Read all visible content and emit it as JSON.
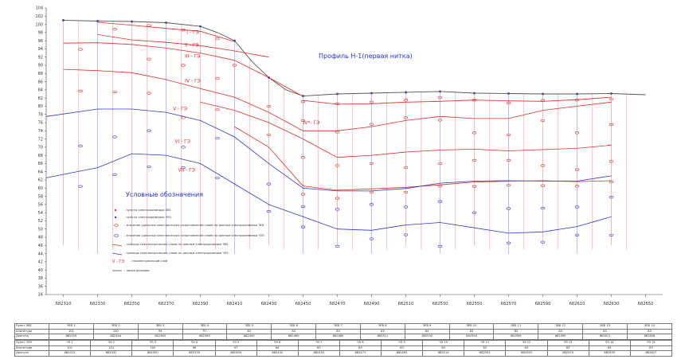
{
  "title": "Профиль Н-1(первая нитка)",
  "legend": {
    "title": "Условные обозначения",
    "items": [
      {
        "key": "ves",
        "label": "- пункты электроразведки ЗЕБ"
      },
      {
        "key": "vrs",
        "label": "- пункты электроразведки ЧЭЗ"
      },
      {
        "key": "rho_ves",
        "label": "- значения удельных электрических сопротивлений слоев по данным электроразведки ЗЕБ"
      },
      {
        "key": "rho_vrs",
        "label": "- значения удельных электрических сопротивлений слоев по данным электроразведки ЧЭЗ"
      },
      {
        "key": "bound_ves",
        "label": "- границы геоэлектрических слоев по данным электроразведки ЗЕБ"
      },
      {
        "key": "bound_vrs",
        "label": "- границы геоэлектрических слоев по данным электроразведки ЧЭЗ"
      },
      {
        "key": "ge",
        "label": "- геоэлектрический слой",
        "symbol": "V - ГЭ"
      },
      {
        "key": "relief",
        "label": "- линия рельефа"
      }
    ]
  },
  "layer_labels": [
    "I - ГЭ",
    "II - ГЭ",
    "III - ГЭ",
    "IV - ГЭ",
    "V - ГЭ",
    "VI - ГЭ",
    "VII - ГЭ",
    "IV*- ГЭ"
  ],
  "chart_data": {
    "type": "line",
    "ylim": [
      34,
      104
    ],
    "yticks": [
      104,
      102,
      100,
      98,
      96,
      94,
      92,
      90,
      88,
      86,
      84,
      82,
      80,
      78,
      76,
      74,
      72,
      70,
      68,
      66,
      64,
      62,
      60,
      58,
      56,
      54,
      52,
      50,
      48,
      46,
      44,
      42,
      40,
      38,
      36,
      34
    ],
    "xlim": [
      682300,
      682660
    ],
    "xticks": [
      682310,
      682330,
      682350,
      682370,
      682390,
      682410,
      682430,
      682450,
      682470,
      682490,
      682510,
      682530,
      682550,
      682570,
      682590,
      682610,
      682630,
      682650
    ],
    "series": [
      {
        "key": "relief",
        "style": "relief",
        "x": [
          682310,
          682330,
          682350,
          682370,
          682390,
          682400,
          682410,
          682420,
          682430,
          682440,
          682450,
          682470,
          682490,
          682510,
          682530,
          682550,
          682570,
          682590,
          682610,
          682630,
          682650
        ],
        "y": [
          101,
          100.8,
          100.7,
          100.4,
          99.5,
          98,
          96,
          91,
          87,
          84,
          82.5,
          83,
          83.2,
          83.4,
          83.6,
          83.2,
          83.1,
          83,
          83,
          83.1,
          82.8
        ]
      },
      {
        "key": "r1",
        "style": "red",
        "x": [
          682330,
          682350,
          682370,
          682390,
          682410
        ],
        "y": [
          100.5,
          99.8,
          99,
          98.3,
          95.8
        ]
      },
      {
        "key": "r2",
        "style": "red",
        "x": [
          682330,
          682350,
          682370,
          682390,
          682410,
          682430
        ],
        "y": [
          97.5,
          96.2,
          95.6,
          94.8,
          93.5,
          92
        ]
      },
      {
        "key": "r3",
        "style": "red",
        "x": [
          682310,
          682330,
          682350,
          682370,
          682390,
          682410,
          682430,
          682450
        ],
        "y": [
          95.4,
          95.5,
          95.1,
          94.2,
          93,
          91.2,
          87,
          82.4
        ]
      },
      {
        "key": "r4",
        "style": "red",
        "x": [
          682310,
          682330,
          682350,
          682370,
          682390,
          682410,
          682430,
          682450,
          682470,
          682490,
          682510,
          682530,
          682550,
          682570,
          682590,
          682610,
          682630
        ],
        "y": [
          89,
          88.7,
          88.2,
          86.5,
          84.3,
          82.2,
          78.5,
          74,
          74,
          75,
          76.5,
          77.5,
          77,
          77,
          79,
          80,
          81
        ]
      },
      {
        "key": "r5",
        "style": "red",
        "x": [
          682450,
          682470,
          682490,
          682510,
          682530,
          682550,
          682570,
          682590,
          682610,
          682630
        ],
        "y": [
          81.4,
          80.5,
          80.6,
          81,
          81.2,
          81.5,
          81.3,
          81.2,
          81.6,
          82.2
        ]
      },
      {
        "key": "r6",
        "style": "red",
        "x": [
          682390,
          682410,
          682430,
          682450,
          682470,
          682490,
          682510,
          682530,
          682550,
          682570,
          682590,
          682610,
          682630
        ],
        "y": [
          81,
          79,
          76,
          72,
          67.5,
          68,
          68.8,
          69.3,
          69.5,
          69.1,
          69.4,
          69.7,
          70.5
        ]
      },
      {
        "key": "r7",
        "style": "red",
        "x": [
          682410,
          682430,
          682450,
          682470,
          682490,
          682510,
          682530,
          682550,
          682570,
          682590,
          682610,
          682630
        ],
        "y": [
          75,
          70,
          60.5,
          59.5,
          59.8,
          60.2,
          60.8,
          61.5,
          61.7,
          61.8,
          61.6,
          61.8
        ]
      },
      {
        "key": "b1",
        "style": "blue",
        "x": [
          682300,
          682330,
          682350,
          682370,
          682390,
          682410,
          682430,
          682450,
          682470,
          682490,
          682510,
          682530,
          682550,
          682570,
          682590,
          682610,
          682630
        ],
        "y": [
          77.5,
          79.3,
          79.3,
          78.5,
          76.5,
          72.5,
          66,
          60,
          59.3,
          59.3,
          59.9,
          61.2,
          61.7,
          61.8,
          61.7,
          61.7,
          63
        ]
      },
      {
        "key": "b2",
        "style": "blue",
        "x": [
          682300,
          682330,
          682350,
          682370,
          682390,
          682410,
          682430,
          682450,
          682470,
          682490,
          682510,
          682530,
          682550,
          682570,
          682590,
          682610,
          682630
        ],
        "y": [
          62.5,
          65,
          68.4,
          68,
          66,
          61,
          56,
          53,
          50,
          49.7,
          51,
          51.6,
          50.3,
          49,
          49.3,
          50.6,
          53
        ]
      }
    ],
    "stations": [
      682310,
      682330,
      682350,
      682370,
      682390,
      682410,
      682430,
      682450,
      682470,
      682490,
      682510,
      682530,
      682550,
      682570,
      682590,
      682610,
      682630
    ],
    "points": [
      {
        "x": 682320,
        "y": 93.9,
        "kind": "red"
      },
      {
        "x": 682340,
        "y": 98.8,
        "kind": "red"
      },
      {
        "x": 682360,
        "y": 99.7,
        "kind": "red"
      },
      {
        "x": 682380,
        "y": 98.6,
        "kind": "red"
      },
      {
        "x": 682320,
        "y": 83.7,
        "kind": "red"
      },
      {
        "x": 682340,
        "y": 83.5,
        "kind": "red"
      },
      {
        "x": 682360,
        "y": 91.5,
        "kind": "red"
      },
      {
        "x": 682380,
        "y": 90,
        "kind": "red"
      },
      {
        "x": 682400,
        "y": 86.8,
        "kind": "red"
      },
      {
        "x": 682360,
        "y": 83.2,
        "kind": "red"
      },
      {
        "x": 682400,
        "y": 79.2,
        "kind": "red"
      },
      {
        "x": 682380,
        "y": 77.2,
        "kind": "red"
      },
      {
        "x": 682320,
        "y": 70.3,
        "kind": "blue"
      },
      {
        "x": 682340,
        "y": 72.5,
        "kind": "blue"
      },
      {
        "x": 682360,
        "y": 74,
        "kind": "blue"
      },
      {
        "x": 682380,
        "y": 70,
        "kind": "blue"
      },
      {
        "x": 682400,
        "y": 72.2,
        "kind": "blue"
      },
      {
        "x": 682340,
        "y": 63.3,
        "kind": "blue"
      },
      {
        "x": 682360,
        "y": 65.2,
        "kind": "blue"
      },
      {
        "x": 682380,
        "y": 65,
        "kind": "blue"
      },
      {
        "x": 682400,
        "y": 62.5,
        "kind": "blue"
      },
      {
        "x": 682320,
        "y": 60.4,
        "kind": "blue"
      },
      {
        "x": 682430,
        "y": 61,
        "kind": "blue"
      },
      {
        "x": 682430,
        "y": 54.3,
        "kind": "blue"
      },
      {
        "x": 682450,
        "y": 50.5,
        "kind": "blue"
      },
      {
        "x": 682470,
        "y": 45.8,
        "kind": "blue"
      },
      {
        "x": 682490,
        "y": 47.6,
        "kind": "blue"
      },
      {
        "x": 682510,
        "y": 48.6,
        "kind": "blue"
      },
      {
        "x": 682530,
        "y": 45.8,
        "kind": "blue"
      },
      {
        "x": 682550,
        "y": 54,
        "kind": "blue"
      },
      {
        "x": 682570,
        "y": 46.6,
        "kind": "blue"
      },
      {
        "x": 682590,
        "y": 46.8,
        "kind": "blue"
      },
      {
        "x": 682610,
        "y": 48.5,
        "kind": "blue"
      },
      {
        "x": 682630,
        "y": 48.5,
        "kind": "blue"
      },
      {
        "x": 682450,
        "y": 55.5,
        "kind": "blue"
      },
      {
        "x": 682470,
        "y": 54.8,
        "kind": "blue"
      },
      {
        "x": 682490,
        "y": 56,
        "kind": "blue"
      },
      {
        "x": 682510,
        "y": 55.4,
        "kind": "blue"
      },
      {
        "x": 682530,
        "y": 56.7,
        "kind": "blue"
      },
      {
        "x": 682570,
        "y": 55,
        "kind": "blue"
      },
      {
        "x": 682590,
        "y": 55.1,
        "kind": "blue"
      },
      {
        "x": 682610,
        "y": 55.4,
        "kind": "blue"
      },
      {
        "x": 682630,
        "y": 57.8,
        "kind": "blue"
      },
      {
        "x": 682450,
        "y": 81.1,
        "kind": "red"
      },
      {
        "x": 682470,
        "y": 80.6,
        "kind": "red"
      },
      {
        "x": 682490,
        "y": 81,
        "kind": "red"
      },
      {
        "x": 682510,
        "y": 81.5,
        "kind": "red"
      },
      {
        "x": 682530,
        "y": 82.1,
        "kind": "red"
      },
      {
        "x": 682550,
        "y": 81.5,
        "kind": "red"
      },
      {
        "x": 682570,
        "y": 80.8,
        "kind": "red"
      },
      {
        "x": 682590,
        "y": 81.4,
        "kind": "red"
      },
      {
        "x": 682610,
        "y": 81.5,
        "kind": "red"
      },
      {
        "x": 682630,
        "y": 81.7,
        "kind": "red"
      },
      {
        "x": 682450,
        "y": 76.5,
        "kind": "red"
      },
      {
        "x": 682470,
        "y": 73.7,
        "kind": "red"
      },
      {
        "x": 682490,
        "y": 75.6,
        "kind": "red"
      },
      {
        "x": 682510,
        "y": 77.2,
        "kind": "red"
      },
      {
        "x": 682530,
        "y": 76.6,
        "kind": "red"
      },
      {
        "x": 682550,
        "y": 73.5,
        "kind": "red"
      },
      {
        "x": 682570,
        "y": 73,
        "kind": "red"
      },
      {
        "x": 682590,
        "y": 76.5,
        "kind": "red"
      },
      {
        "x": 682610,
        "y": 73.5,
        "kind": "red"
      },
      {
        "x": 682630,
        "y": 75.5,
        "kind": "red"
      },
      {
        "x": 682450,
        "y": 67.5,
        "kind": "red"
      },
      {
        "x": 682470,
        "y": 65.5,
        "kind": "red"
      },
      {
        "x": 682490,
        "y": 66,
        "kind": "red"
      },
      {
        "x": 682510,
        "y": 65,
        "kind": "red"
      },
      {
        "x": 682530,
        "y": 66,
        "kind": "red"
      },
      {
        "x": 682550,
        "y": 66.8,
        "kind": "red"
      },
      {
        "x": 682570,
        "y": 66.8,
        "kind": "red"
      },
      {
        "x": 682590,
        "y": 65.5,
        "kind": "red"
      },
      {
        "x": 682610,
        "y": 64.5,
        "kind": "red"
      },
      {
        "x": 682630,
        "y": 66.5,
        "kind": "red"
      },
      {
        "x": 682450,
        "y": 58.5,
        "kind": "red"
      },
      {
        "x": 682470,
        "y": 57.5,
        "kind": "red"
      },
      {
        "x": 682490,
        "y": 59,
        "kind": "red"
      },
      {
        "x": 682510,
        "y": 59,
        "kind": "red"
      },
      {
        "x": 682530,
        "y": 60.5,
        "kind": "red"
      },
      {
        "x": 682550,
        "y": 60.4,
        "kind": "red"
      },
      {
        "x": 682570,
        "y": 60.7,
        "kind": "red"
      },
      {
        "x": 682590,
        "y": 60.6,
        "kind": "red"
      },
      {
        "x": 682610,
        "y": 60.5,
        "kind": "red"
      },
      {
        "x": 682630,
        "y": 61.5,
        "kind": "red"
      },
      {
        "x": 682430,
        "y": 80,
        "kind": "red"
      },
      {
        "x": 682430,
        "y": 73,
        "kind": "red"
      },
      {
        "x": 682400,
        "y": 96.5,
        "kind": "red"
      },
      {
        "x": 682410,
        "y": 90,
        "kind": "red"
      }
    ],
    "layer_label_positions": [
      {
        "label": 0,
        "x": 682382,
        "y": 97.7
      },
      {
        "label": 1,
        "x": 682381,
        "y": 94.6
      },
      {
        "label": 2,
        "x": 682381,
        "y": 91.8
      },
      {
        "label": 3,
        "x": 682381,
        "y": 85.8
      },
      {
        "label": 4,
        "x": 682374,
        "y": 79
      },
      {
        "label": 5,
        "x": 682375,
        "y": 71
      },
      {
        "label": 6,
        "x": 682377,
        "y": 64
      },
      {
        "label": 7,
        "x": 682450,
        "y": 75.6
      }
    ]
  },
  "table": {
    "rows_top": [
      {
        "label": "Пункт ЗЕБ",
        "cells": [
          "ЗЕБ 1",
          "ЗЕБ 2",
          "ЗЕБ 3",
          "ЗЕБ 4",
          "ЗЕБ 5",
          "ЗЕБ 6",
          "ЗЕБ 7",
          "ЗЕБ 8",
          "ЗЕБ 9",
          "ЗЕБ 10",
          "ЗЕБ 11",
          "ЗЕБ 12",
          "ЗЕБ 13",
          "ЗЕБ 14"
        ]
      },
      {
        "label": "Альтитуда",
        "cells": [
          "101",
          "100",
          "99",
          "97",
          "83",
          "83",
          "83",
          "83",
          "84",
          "83",
          "83",
          "83",
          "83",
          "83"
        ]
      },
      {
        "label": "Долгота",
        "cells": [
          "682325",
          "682344",
          "682363",
          "682383",
          "682450",
          "682469",
          "682489",
          "682512",
          "682532",
          "682550",
          "682569",
          "682590",
          "682611",
          "682628"
        ]
      }
    ],
    "rows_bottom": [
      {
        "label": "Пункт ЧЭЗ",
        "cells": [
          "ЧЭ 1",
          "ЧЭ 2",
          "ЧЭ 3",
          "ЧЭ 4",
          "ЧЭ 5",
          "ЧЭ 6",
          "ЧЭ 7",
          "ЧЭ 8",
          "ЧЭ 9",
          "ЧЭ 10",
          "ЧЭ 11",
          "ЧЭ 12",
          "ЧЭ 13",
          "ЧЭ 14",
          "ЧЭ 15"
        ]
      },
      {
        "label": "Альтитуда",
        "cells": [
          "101",
          "101",
          "100",
          "98",
          "97",
          "84",
          "83",
          "83",
          "83",
          "83",
          "83",
          "83",
          "83",
          "83",
          "83"
        ]
      },
      {
        "label": "Долгота",
        "cells": [
          "682312",
          "682332",
          "682350",
          "682376",
          "682394",
          "682432",
          "682452",
          "682471",
          "682492",
          "682513",
          "682532",
          "682553",
          "682574",
          "682593",
          "682627"
        ]
      }
    ]
  },
  "colors": {
    "red": "#e02b2b",
    "blue": "#3535c8",
    "relief": "#555555",
    "grid": "#bbbbbb"
  }
}
